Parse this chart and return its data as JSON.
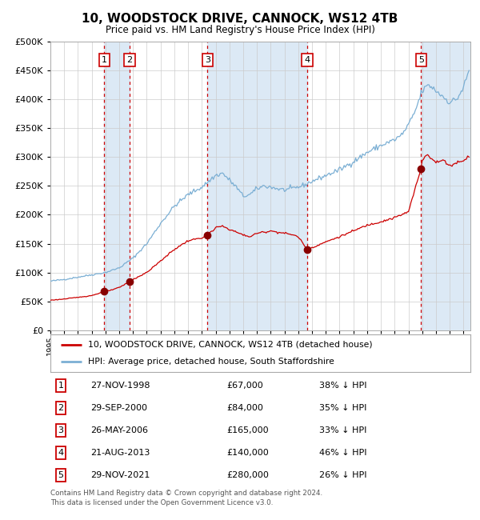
{
  "title": "10, WOODSTOCK DRIVE, CANNOCK, WS12 4TB",
  "subtitle": "Price paid vs. HM Land Registry's House Price Index (HPI)",
  "legend_red": "10, WOODSTOCK DRIVE, CANNOCK, WS12 4TB (detached house)",
  "legend_blue": "HPI: Average price, detached house, South Staffordshire",
  "footer1": "Contains HM Land Registry data © Crown copyright and database right 2024.",
  "footer2": "This data is licensed under the Open Government Licence v3.0.",
  "sales": [
    {
      "num": 1,
      "date": "27-NOV-1998",
      "price": 67000,
      "pct": "38% ↓ HPI",
      "date_x": 1998.91
    },
    {
      "num": 2,
      "date": "29-SEP-2000",
      "price": 84000,
      "pct": "35% ↓ HPI",
      "date_x": 2000.75
    },
    {
      "num": 3,
      "date": "26-MAY-2006",
      "price": 165000,
      "pct": "33% ↓ HPI",
      "date_x": 2006.4
    },
    {
      "num": 4,
      "date": "21-AUG-2013",
      "price": 140000,
      "pct": "46% ↓ HPI",
      "date_x": 2013.64
    },
    {
      "num": 5,
      "date": "29-NOV-2021",
      "price": 280000,
      "pct": "26% ↓ HPI",
      "date_x": 2021.91
    }
  ],
  "ylim": [
    0,
    500000
  ],
  "yticks": [
    0,
    50000,
    100000,
    150000,
    200000,
    250000,
    300000,
    350000,
    400000,
    450000,
    500000
  ],
  "xlim_start": 1995.0,
  "xlim_end": 2025.5,
  "shade_color": "#dce9f5",
  "plot_bg": "#ffffff",
  "grid_color": "#cccccc",
  "red_line_color": "#cc0000",
  "blue_line_color": "#7bafd4",
  "dashed_line_color": "#cc0000",
  "sale_marker_color": "#880000",
  "box_color": "#cc0000"
}
